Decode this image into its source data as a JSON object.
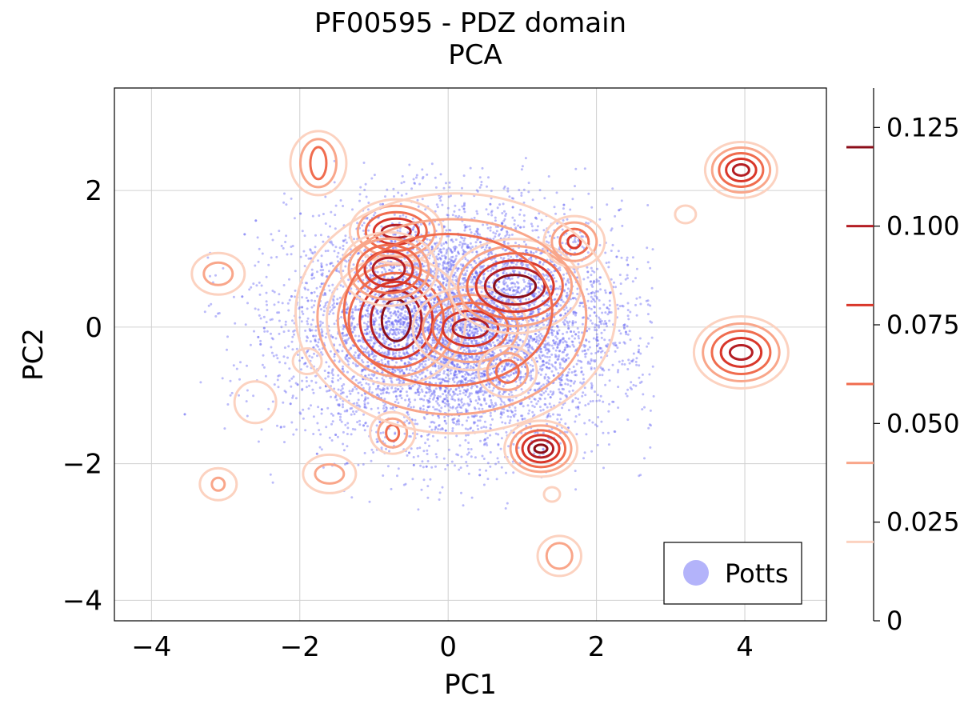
{
  "chart_data": {
    "type": "scatter",
    "title": "PF00595 - PDZ domain",
    "subtitle": "PCA",
    "xlabel": "PC1",
    "ylabel": "PC2",
    "xlim": [
      -4.5,
      5.1
    ],
    "ylim": [
      -4.3,
      3.5
    ],
    "xticks": [
      -4,
      -2,
      0,
      2,
      4
    ],
    "yticks": [
      -4,
      -2,
      0,
      2
    ],
    "xtick_labels": [
      "−4",
      "−2",
      "0",
      "2",
      "4"
    ],
    "ytick_labels": [
      "−4",
      "−2",
      "0",
      "2"
    ],
    "grid": true,
    "legend": {
      "position": "bottom-right",
      "entries": [
        "Potts"
      ]
    },
    "series": [
      {
        "name": "Potts",
        "kind": "scatter",
        "color": "#6b6bf5",
        "count": 7000,
        "center": [
          0.1,
          0.0
        ],
        "spread": [
          1.1,
          0.85
        ],
        "x_range": [
          -3.6,
          2.8
        ],
        "y_range": [
          -2.7,
          2.5
        ]
      },
      {
        "kind": "contour",
        "colormap": "Reds",
        "levels": [
          0.02,
          0.04,
          0.06,
          0.08,
          0.1,
          0.12
        ]
      }
    ],
    "density_peaks": [
      {
        "x": -0.7,
        "y": 0.1
      },
      {
        "x": 0.3,
        "y": -0.02
      },
      {
        "x": 0.9,
        "y": 0.6
      },
      {
        "x": -0.7,
        "y": 1.4
      },
      {
        "x": -0.8,
        "y": 0.85
      },
      {
        "x": 1.7,
        "y": 1.25
      },
      {
        "x": 3.95,
        "y": 2.3
      },
      {
        "x": 3.95,
        "y": -0.37
      },
      {
        "x": 1.25,
        "y": -1.78
      },
      {
        "x": 0.8,
        "y": -0.65
      },
      {
        "x": -0.75,
        "y": -1.55
      },
      {
        "x": -1.75,
        "y": 2.4
      },
      {
        "x": -3.1,
        "y": 0.78
      },
      {
        "x": -1.6,
        "y": -2.15
      },
      {
        "x": 1.5,
        "y": -3.35
      },
      {
        "x": -3.1,
        "y": -2.3
      },
      {
        "x": 3.2,
        "y": 1.65
      },
      {
        "x": -2.6,
        "y": -1.1
      },
      {
        "x": -1.9,
        "y": -0.5
      },
      {
        "x": 1.4,
        "y": -2.45
      }
    ],
    "colorbar": {
      "range": [
        0,
        0.135
      ],
      "tick_values": [
        0,
        0.025,
        0.05,
        0.075,
        0.1,
        0.125
      ],
      "tick_labels": [
        "0",
        "0.025",
        "0.050",
        "0.075",
        "0.100",
        "0.125"
      ],
      "level_colors": [
        "#fcd2c0",
        "#f9a68a",
        "#f06c4e",
        "#d9372a",
        "#b41e24",
        "#8b0d18"
      ]
    }
  }
}
